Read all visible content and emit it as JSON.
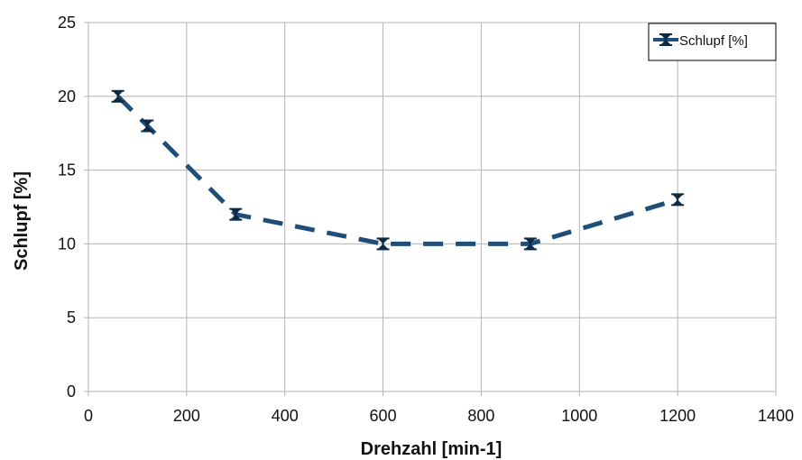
{
  "chart_data": {
    "type": "line",
    "title": "",
    "xlabel": "Drehzahl [min-1]",
    "ylabel": "Schlupf [%]",
    "xlim": [
      0,
      1400
    ],
    "ylim": [
      0,
      25
    ],
    "x_ticks": [
      "0",
      "200",
      "400",
      "600",
      "800",
      "1000",
      "1200",
      "1400"
    ],
    "y_ticks": [
      "0",
      "5",
      "10",
      "15",
      "20",
      "25"
    ],
    "grid": true,
    "legend_position": "top-right",
    "series": [
      {
        "name": "Schlupf [%]",
        "color": "#1f4e79",
        "line_style": "dashed",
        "marker": "hourglass",
        "x": [
          60,
          120,
          300,
          600,
          900,
          1200
        ],
        "y": [
          20,
          18,
          12,
          10,
          10,
          13
        ]
      }
    ]
  }
}
